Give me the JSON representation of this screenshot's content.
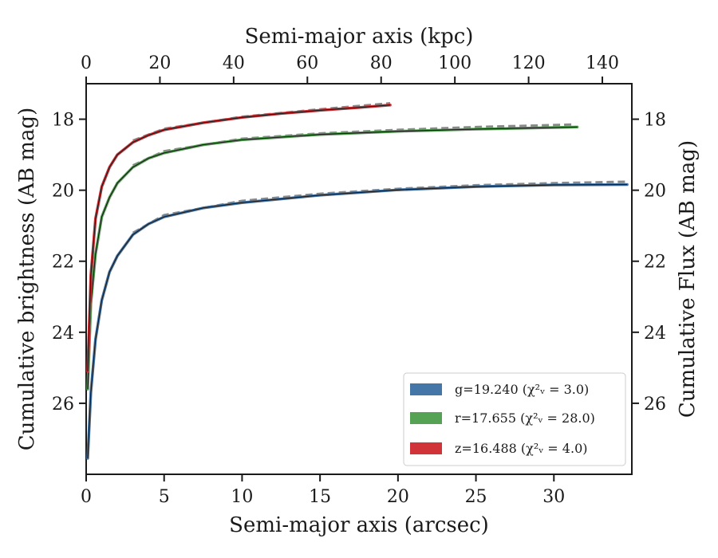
{
  "chart_data": {
    "type": "line",
    "xlabel": "Semi-major axis (arcsec)",
    "x2label": "Semi-major axis (kpc)",
    "ylabel": "Cumulative brightness (AB mag)",
    "y2label": "Cumulative Flux (AB mag)",
    "xlim": [
      0,
      35
    ],
    "x2lim": [
      0,
      148
    ],
    "ylim": [
      28,
      17
    ],
    "y_inverted": true,
    "xticks": [
      "0",
      "5",
      "10",
      "15",
      "20",
      "25",
      "30"
    ],
    "x2ticks": [
      "0",
      "20",
      "40",
      "60",
      "80",
      "100",
      "120",
      "140"
    ],
    "yticks": [
      "18",
      "20",
      "22",
      "24",
      "26"
    ],
    "legend_position": "lower right",
    "legend": [
      {
        "band": "g",
        "text": "g=19.240 (χ²ᵥ = 3.0)",
        "color": "#4576a8"
      },
      {
        "band": "r",
        "text": "r=17.655 (χ²ᵥ = 28.0)",
        "color": "#56a255"
      },
      {
        "band": "z",
        "text": "z=16.488 (χ²ᵥ = 4.0)",
        "color": "#d13438"
      }
    ],
    "series": [
      {
        "band": "g",
        "color": "#4576a8",
        "x": [
          0.1,
          0.3,
          0.6,
          1.0,
          1.5,
          2.0,
          3.0,
          4.0,
          5.0,
          7.5,
          10,
          15,
          20,
          25,
          30,
          34.7
        ],
        "y": [
          27.55,
          25.7,
          24.2,
          23.1,
          22.3,
          21.85,
          21.25,
          20.95,
          20.75,
          20.5,
          20.35,
          20.14,
          19.99,
          19.9,
          19.85,
          19.84
        ],
        "model_x": [
          3.0,
          5.0,
          10,
          15,
          20,
          25,
          30,
          34.7
        ],
        "model_y": [
          21.2,
          20.7,
          20.3,
          20.1,
          19.96,
          19.86,
          19.8,
          19.76
        ]
      },
      {
        "band": "r",
        "color": "#56a255",
        "x": [
          0.1,
          0.3,
          0.6,
          1.0,
          1.5,
          2.0,
          3.0,
          4.0,
          5.0,
          7.5,
          10,
          15,
          20,
          25,
          31.5
        ],
        "y": [
          25.6,
          23.2,
          21.8,
          20.75,
          20.2,
          19.8,
          19.35,
          19.1,
          18.95,
          18.72,
          18.58,
          18.43,
          18.34,
          18.28,
          18.22
        ],
        "model_x": [
          3.0,
          5.0,
          10,
          15,
          20,
          25,
          31.2
        ],
        "model_y": [
          19.3,
          18.9,
          18.55,
          18.4,
          18.3,
          18.22,
          18.15
        ]
      },
      {
        "band": "z",
        "color": "#d13438",
        "x": [
          0.1,
          0.3,
          0.6,
          1.0,
          1.5,
          2.0,
          3.0,
          4.0,
          5.0,
          7.5,
          10,
          12.5,
          15,
          17.5,
          19.5
        ],
        "y": [
          25.1,
          22.4,
          20.8,
          19.9,
          19.35,
          19.0,
          18.65,
          18.45,
          18.3,
          18.1,
          17.95,
          17.84,
          17.75,
          17.67,
          17.6
        ],
        "model_x": [
          3.0,
          5.0,
          10,
          15,
          19.5
        ],
        "model_y": [
          18.6,
          18.27,
          17.93,
          17.72,
          17.55
        ]
      }
    ]
  }
}
